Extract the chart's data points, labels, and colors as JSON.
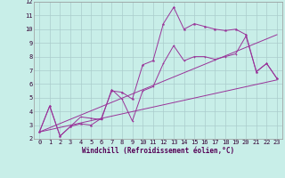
{
  "xlabel": "Windchill (Refroidissement éolien,°C)",
  "bg_color": "#c8eee8",
  "grid_color": "#aacccc",
  "line_color": "#993399",
  "xlim": [
    -0.5,
    23.5
  ],
  "ylim": [
    2,
    12
  ],
  "xticks": [
    0,
    1,
    2,
    3,
    4,
    5,
    6,
    7,
    8,
    9,
    10,
    11,
    12,
    13,
    14,
    15,
    16,
    17,
    18,
    19,
    20,
    21,
    22,
    23
  ],
  "yticks": [
    2,
    3,
    4,
    5,
    6,
    7,
    8,
    9,
    10,
    11,
    12
  ],
  "line1_x": [
    0,
    1,
    2,
    3,
    4,
    5,
    6,
    7,
    8,
    9,
    10,
    11,
    12,
    13,
    14,
    15,
    16,
    17,
    18,
    19,
    20,
    21,
    22,
    23
  ],
  "line1_y": [
    2.5,
    4.4,
    2.2,
    2.9,
    3.1,
    3.0,
    3.5,
    5.5,
    5.4,
    4.9,
    7.4,
    7.7,
    10.4,
    11.6,
    10.0,
    10.4,
    10.2,
    10.0,
    9.9,
    10.0,
    9.6,
    6.9,
    7.5,
    6.4
  ],
  "line2_x": [
    0,
    1,
    2,
    3,
    4,
    5,
    6,
    7,
    8,
    9,
    10,
    11,
    12,
    13,
    14,
    15,
    16,
    17,
    18,
    19,
    20,
    21,
    22,
    23
  ],
  "line2_y": [
    2.5,
    4.4,
    2.2,
    2.9,
    3.6,
    3.5,
    3.4,
    5.6,
    4.9,
    3.3,
    5.5,
    5.8,
    7.5,
    8.8,
    7.7,
    8.0,
    8.0,
    7.8,
    8.0,
    8.2,
    9.5,
    6.9,
    7.5,
    6.4
  ],
  "line3_x": [
    0,
    23
  ],
  "line3_y": [
    2.5,
    6.3
  ],
  "line4_x": [
    0,
    23
  ],
  "line4_y": [
    2.5,
    9.6
  ],
  "xlabel_color": "#550055",
  "xlabel_fontsize": 5.5,
  "tick_fontsize": 5,
  "lw": 0.7,
  "marker_size": 2.0
}
